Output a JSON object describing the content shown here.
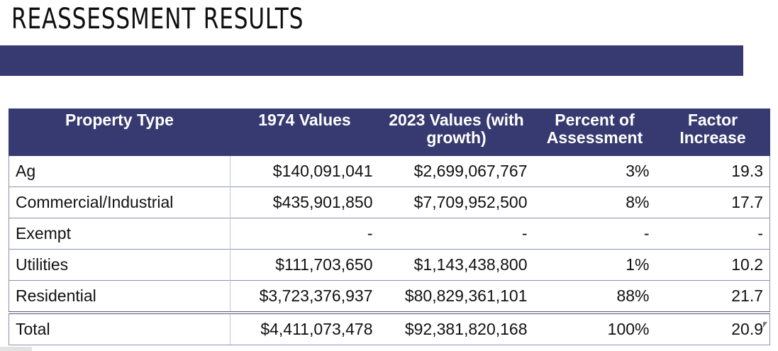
{
  "slide": {
    "title": "REASSESSMENT RESULTS"
  },
  "table": {
    "headers": {
      "type": "Property Type",
      "v1974": "1974 Values",
      "v2023": "2023 Values (with growth)",
      "pct": "Percent of Assessment",
      "factor": "Factor Increase"
    },
    "rows": [
      {
        "type": "Ag",
        "v1974": "$140,091,041",
        "v2023": "$2,699,067,767",
        "pct": "3%",
        "factor": "19.3"
      },
      {
        "type": "Commercial/Industrial",
        "v1974": "$435,901,850",
        "v2023": "$7,709,952,500",
        "pct": "8%",
        "factor": "17.7"
      },
      {
        "type": "Exempt",
        "v1974": "-",
        "v2023": "-",
        "pct": "-",
        "factor": "-"
      },
      {
        "type": "Utilities",
        "v1974": "$111,703,650",
        "v2023": "$1,143,438,800",
        "pct": "1%",
        "factor": "10.2"
      },
      {
        "type": "Residential",
        "v1974": "$3,723,376,937",
        "v2023": "$80,829,361,101",
        "pct": "88%",
        "factor": "21.7"
      }
    ],
    "total": {
      "type": "Total",
      "v1974": "$4,411,073,478",
      "v2023": "$92,381,820,168",
      "pct": "100%",
      "factor": "20.9"
    }
  },
  "colors": {
    "band": "#373a70",
    "header_text": "#ffffff",
    "body_text": "#111111"
  }
}
